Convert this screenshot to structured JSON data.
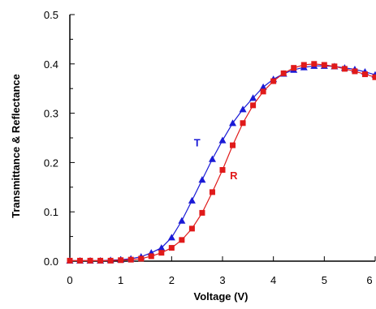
{
  "chart_data": {
    "type": "scatter",
    "xlabel": "Voltage (V)",
    "ylabel": "Transmittance & Reflectance",
    "xlim": [
      0,
      6
    ],
    "ylim": [
      0,
      0.5
    ],
    "x_ticks": [
      0,
      1,
      2,
      3,
      4,
      5,
      6
    ],
    "y_ticks": [
      0.0,
      0.1,
      0.2,
      0.3,
      0.4,
      0.5
    ],
    "x_tick_labels": [
      "0",
      "1",
      "2",
      "3",
      "4",
      "5",
      "6"
    ],
    "y_tick_labels": [
      "0.0",
      "0.1",
      "0.2",
      "0.3",
      "0.4",
      "0.5"
    ],
    "grid": false,
    "x": [
      0,
      0.2,
      0.4,
      0.6,
      0.8,
      1.0,
      1.2,
      1.4,
      1.6,
      1.8,
      2.0,
      2.2,
      2.4,
      2.6,
      2.8,
      3.0,
      3.2,
      3.4,
      3.6,
      3.8,
      4.0,
      4.2,
      4.4,
      4.6,
      4.8,
      5.0,
      5.2,
      5.4,
      5.6,
      5.8,
      6.0
    ],
    "series": [
      {
        "name": "T",
        "color": "#1a1ad6",
        "marker": "triangle",
        "values": [
          0.001,
          0.001,
          0.001,
          0.001,
          0.002,
          0.003,
          0.005,
          0.009,
          0.017,
          0.027,
          0.048,
          0.082,
          0.123,
          0.165,
          0.207,
          0.245,
          0.28,
          0.308,
          0.331,
          0.353,
          0.369,
          0.38,
          0.388,
          0.393,
          0.396,
          0.396,
          0.395,
          0.392,
          0.389,
          0.384,
          0.378
        ]
      },
      {
        "name": "R",
        "color": "#e01a1a",
        "marker": "square",
        "values": [
          0.001,
          0.001,
          0.001,
          0.001,
          0.001,
          0.002,
          0.003,
          0.005,
          0.01,
          0.017,
          0.027,
          0.043,
          0.066,
          0.098,
          0.14,
          0.185,
          0.235,
          0.28,
          0.316,
          0.344,
          0.365,
          0.381,
          0.392,
          0.398,
          0.4,
          0.398,
          0.395,
          0.39,
          0.385,
          0.379,
          0.373
        ]
      }
    ],
    "annotations": [
      {
        "text": "T",
        "x": 2.5,
        "y": 0.233,
        "color": "#1a1ad6"
      },
      {
        "text": "R",
        "x": 3.22,
        "y": 0.166,
        "color": "#e01a1a"
      }
    ]
  }
}
